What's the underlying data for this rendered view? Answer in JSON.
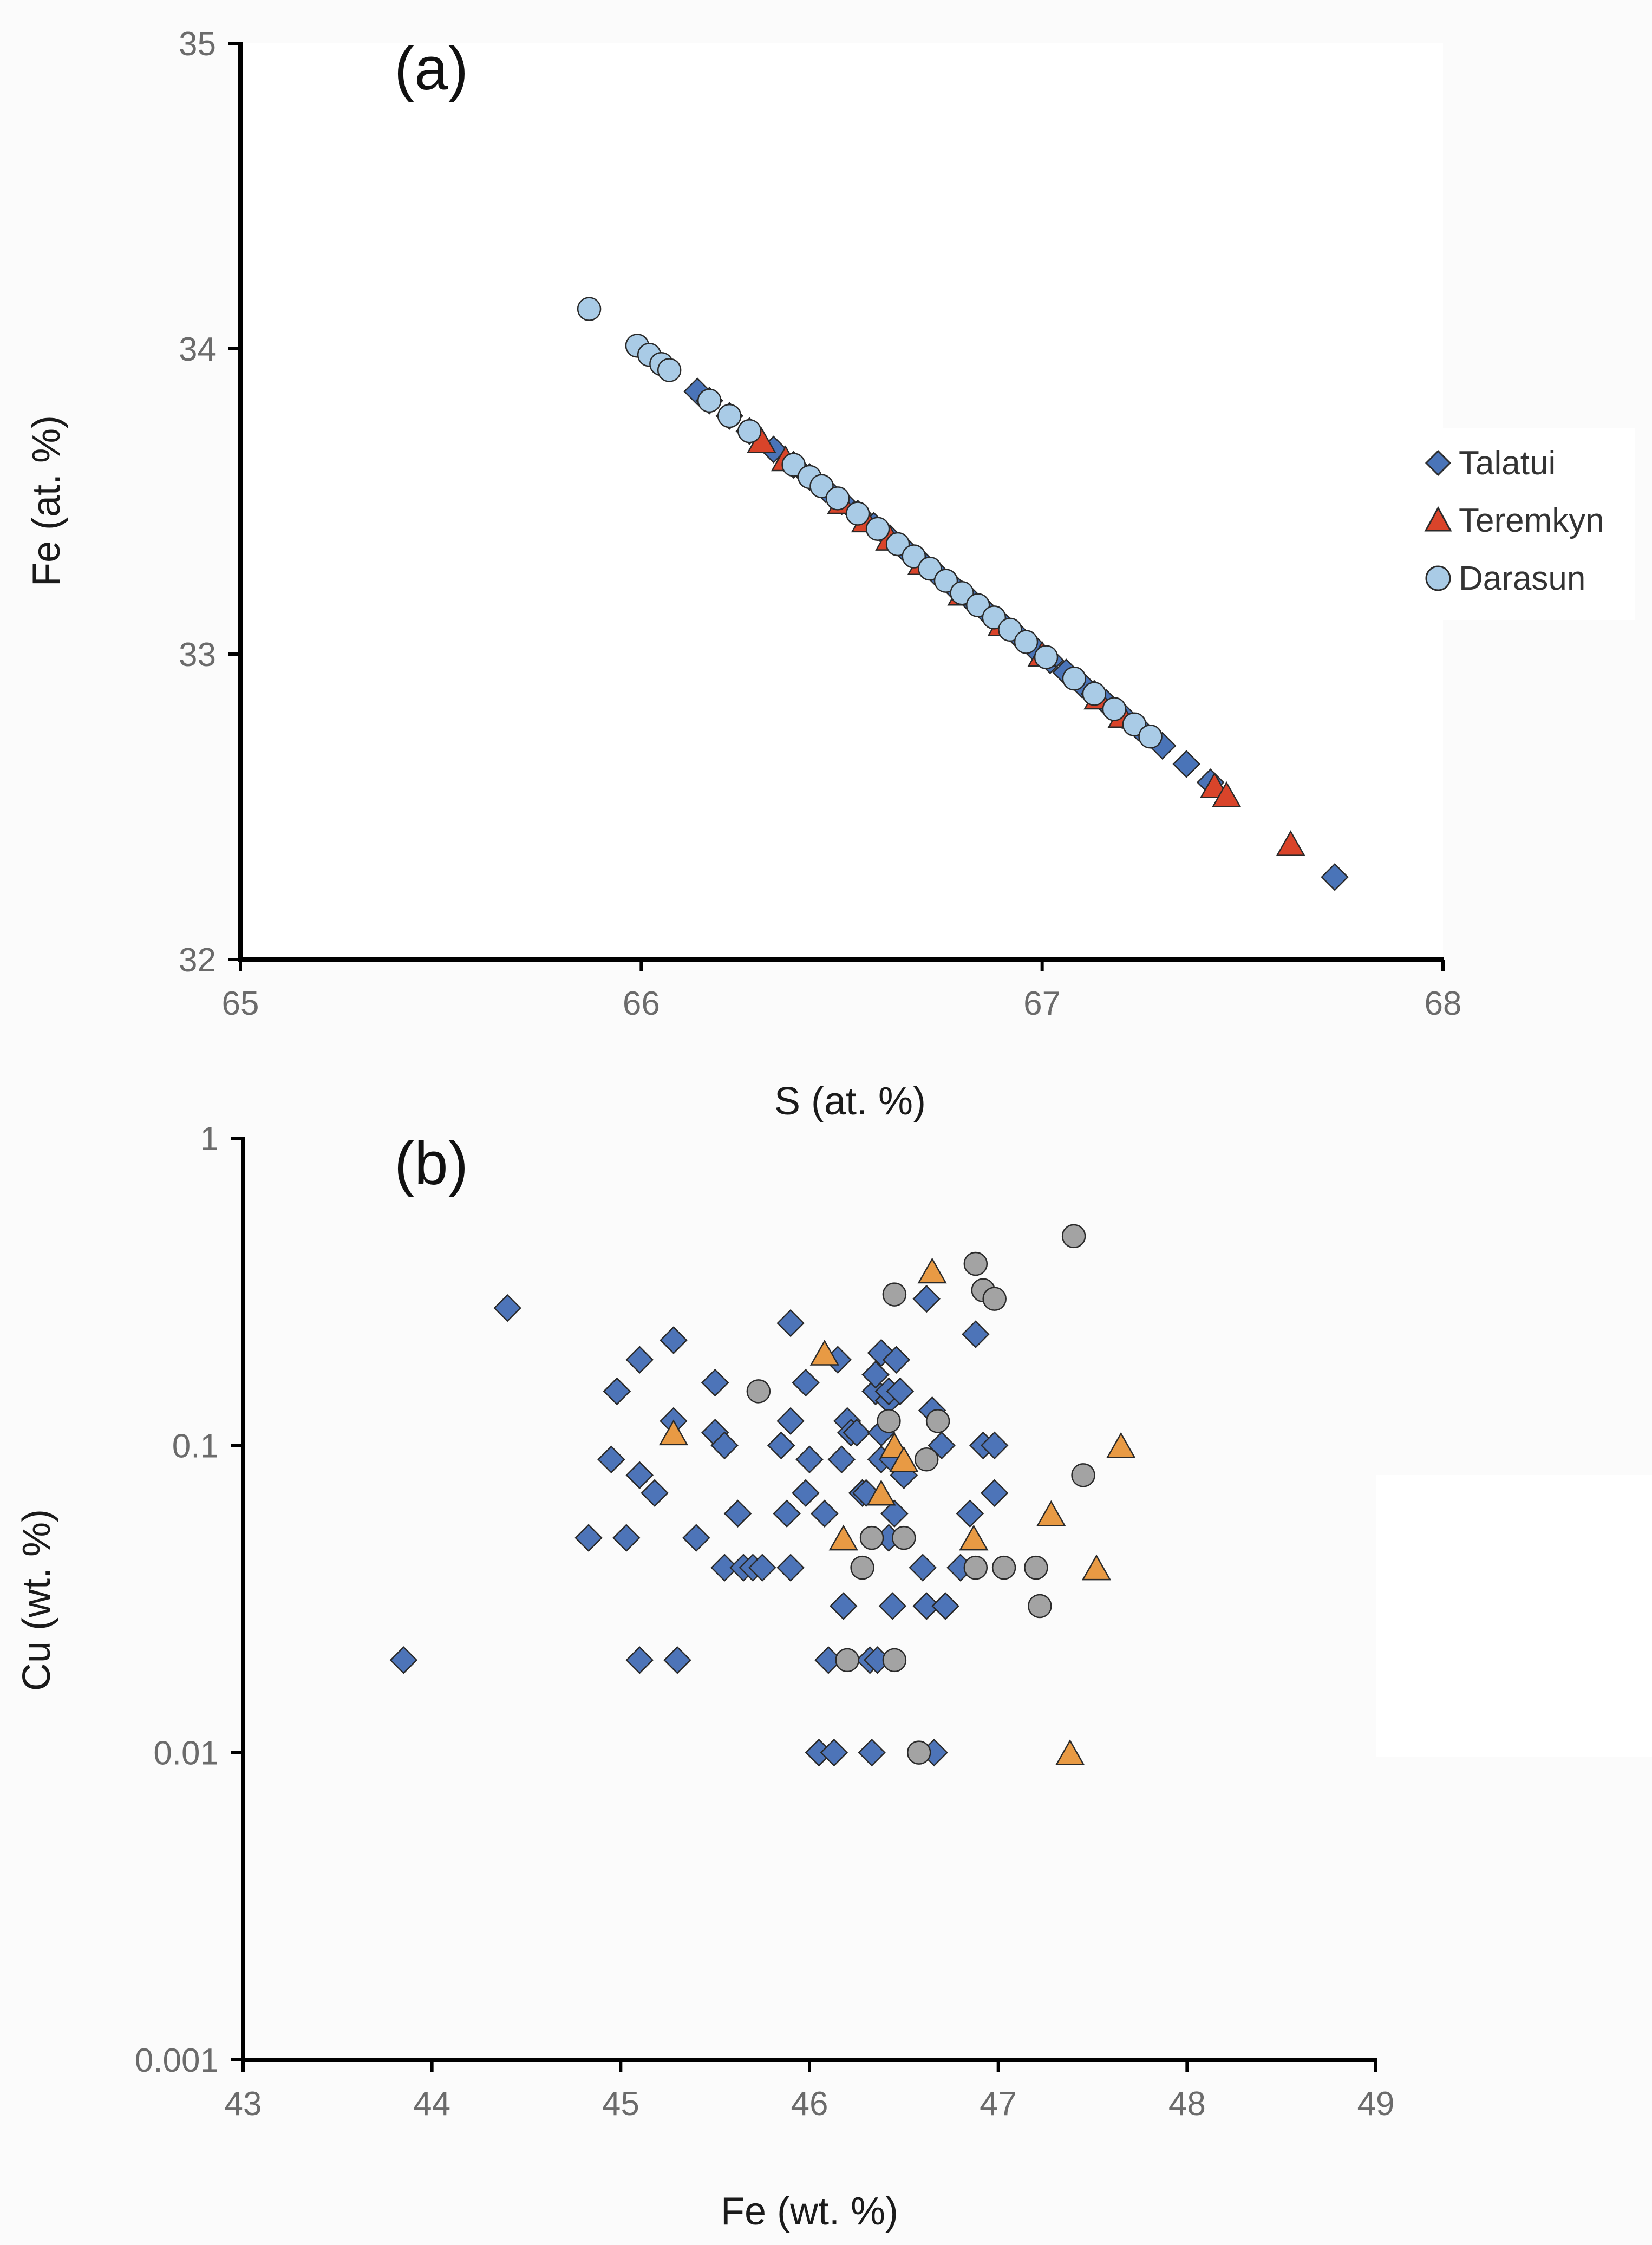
{
  "colors": {
    "talatui": "#4a74b8",
    "teremkyn": "#d9442a",
    "darasun": "#a9cbe6",
    "b_diamond": "#4d74b8",
    "b_triangle": "#e89a44",
    "b_circle": "#a3a3a3",
    "axis": "#000000",
    "marker_edge": "#2a2a2a"
  },
  "chart_data": [
    {
      "type": "scatter",
      "panel_label": "(a)",
      "xlabel": "S (at. %)",
      "ylabel": "Fe (at. %)",
      "xlim": [
        65,
        68
      ],
      "ylim": [
        32,
        35
      ],
      "xticks": [
        "65",
        "66",
        "67",
        "68"
      ],
      "yticks": [
        "32",
        "33",
        "34",
        "35"
      ],
      "grid": false,
      "legend": {
        "placement": "right",
        "entries": [
          "Talatui",
          "Teremkyn",
          "Darasun"
        ]
      },
      "series": [
        {
          "name": "Talatui",
          "marker": "diamond",
          "points": [
            [
              66.14,
              33.86
            ],
            [
              66.17,
              33.83
            ],
            [
              66.22,
              33.78
            ],
            [
              66.27,
              33.73
            ],
            [
              66.33,
              33.67
            ],
            [
              66.38,
              33.62
            ],
            [
              66.42,
              33.58
            ],
            [
              66.46,
              33.54
            ],
            [
              66.5,
              33.5
            ],
            [
              66.54,
              33.46
            ],
            [
              66.58,
              33.42
            ],
            [
              66.62,
              33.38
            ],
            [
              66.66,
              33.34
            ],
            [
              66.7,
              33.3
            ],
            [
              66.74,
              33.26
            ],
            [
              66.78,
              33.22
            ],
            [
              66.82,
              33.18
            ],
            [
              66.86,
              33.14
            ],
            [
              66.9,
              33.1
            ],
            [
              66.94,
              33.06
            ],
            [
              66.98,
              33.02
            ],
            [
              67.02,
              32.98
            ],
            [
              67.06,
              32.94
            ],
            [
              67.1,
              32.9
            ],
            [
              67.13,
              32.87
            ],
            [
              67.16,
              32.84
            ],
            [
              67.2,
              32.8
            ],
            [
              67.24,
              32.76
            ],
            [
              67.3,
              32.7
            ],
            [
              67.36,
              32.64
            ],
            [
              67.42,
              32.58
            ],
            [
              67.73,
              32.27
            ]
          ]
        },
        {
          "name": "Teremkyn",
          "marker": "triangle",
          "points": [
            [
              66.3,
              33.7
            ],
            [
              66.36,
              33.64
            ],
            [
              66.5,
              33.5
            ],
            [
              66.56,
              33.44
            ],
            [
              66.62,
              33.38
            ],
            [
              66.7,
              33.3
            ],
            [
              66.8,
              33.2
            ],
            [
              66.9,
              33.1
            ],
            [
              67.0,
              33.0
            ],
            [
              67.14,
              32.86
            ],
            [
              67.2,
              32.8
            ],
            [
              67.43,
              32.57
            ],
            [
              67.46,
              32.54
            ],
            [
              67.62,
              32.38
            ]
          ]
        },
        {
          "name": "Darasun",
          "marker": "circle",
          "points": [
            [
              65.87,
              34.13
            ],
            [
              65.99,
              34.01
            ],
            [
              66.02,
              33.98
            ],
            [
              66.05,
              33.95
            ],
            [
              66.07,
              33.93
            ],
            [
              66.17,
              33.83
            ],
            [
              66.22,
              33.78
            ],
            [
              66.27,
              33.73
            ],
            [
              66.38,
              33.62
            ],
            [
              66.42,
              33.58
            ],
            [
              66.45,
              33.55
            ],
            [
              66.49,
              33.51
            ],
            [
              66.54,
              33.46
            ],
            [
              66.59,
              33.41
            ],
            [
              66.64,
              33.36
            ],
            [
              66.68,
              33.32
            ],
            [
              66.72,
              33.28
            ],
            [
              66.76,
              33.24
            ],
            [
              66.8,
              33.2
            ],
            [
              66.84,
              33.16
            ],
            [
              66.88,
              33.12
            ],
            [
              66.92,
              33.08
            ],
            [
              66.96,
              33.04
            ],
            [
              67.01,
              32.99
            ],
            [
              67.08,
              32.92
            ],
            [
              67.13,
              32.87
            ],
            [
              67.18,
              32.82
            ],
            [
              67.23,
              32.77
            ],
            [
              67.27,
              32.73
            ]
          ]
        }
      ]
    },
    {
      "type": "scatter",
      "panel_label": "(b)",
      "xlabel": "Fe (wt. %)",
      "ylabel": "Cu (wt. %)",
      "xlim": [
        43,
        49
      ],
      "ylim": [
        0.001,
        1
      ],
      "yscale": "log",
      "xticks": [
        "43",
        "44",
        "45",
        "46",
        "47",
        "48",
        "49"
      ],
      "yticks": [
        "0.001",
        "0.01",
        "0.1",
        "1"
      ],
      "grid": false,
      "legend": null,
      "series": [
        {
          "marker": "diamond",
          "points": [
            [
              43.85,
              0.02
            ],
            [
              44.4,
              0.28
            ],
            [
              44.83,
              0.05
            ],
            [
              44.95,
              0.09
            ],
            [
              44.98,
              0.15
            ],
            [
              45.03,
              0.05
            ],
            [
              45.1,
              0.08
            ],
            [
              45.1,
              0.19
            ],
            [
              45.1,
              0.02
            ],
            [
              45.18,
              0.07
            ],
            [
              45.28,
              0.22
            ],
            [
              45.28,
              0.12
            ],
            [
              45.3,
              0.02
            ],
            [
              45.4,
              0.05
            ],
            [
              45.5,
              0.16
            ],
            [
              45.5,
              0.11
            ],
            [
              45.55,
              0.1
            ],
            [
              45.55,
              0.04
            ],
            [
              45.62,
              0.06
            ],
            [
              45.65,
              0.04
            ],
            [
              45.7,
              0.04
            ],
            [
              45.75,
              0.04
            ],
            [
              45.85,
              0.1
            ],
            [
              45.88,
              0.06
            ],
            [
              45.9,
              0.25
            ],
            [
              45.9,
              0.12
            ],
            [
              45.9,
              0.04
            ],
            [
              45.98,
              0.16
            ],
            [
              45.98,
              0.07
            ],
            [
              46.0,
              0.09
            ],
            [
              46.05,
              0.01
            ],
            [
              46.08,
              0.06
            ],
            [
              46.1,
              0.02
            ],
            [
              46.13,
              0.01
            ],
            [
              46.15,
              0.19
            ],
            [
              46.17,
              0.09
            ],
            [
              46.18,
              0.03
            ],
            [
              46.2,
              0.12
            ],
            [
              46.22,
              0.11
            ],
            [
              46.25,
              0.11
            ],
            [
              46.28,
              0.07
            ],
            [
              46.3,
              0.07
            ],
            [
              46.32,
              0.02
            ],
            [
              46.33,
              0.01
            ],
            [
              46.35,
              0.15
            ],
            [
              46.35,
              0.17
            ],
            [
              46.36,
              0.02
            ],
            [
              46.38,
              0.2
            ],
            [
              46.38,
              0.11
            ],
            [
              46.38,
              0.09
            ],
            [
              46.42,
              0.14
            ],
            [
              46.42,
              0.15
            ],
            [
              46.42,
              0.05
            ],
            [
              46.44,
              0.09
            ],
            [
              46.44,
              0.03
            ],
            [
              46.45,
              0.06
            ],
            [
              46.46,
              0.19
            ],
            [
              46.48,
              0.15
            ],
            [
              46.5,
              0.08
            ],
            [
              46.6,
              0.04
            ],
            [
              46.62,
              0.3
            ],
            [
              46.62,
              0.03
            ],
            [
              46.65,
              0.13
            ],
            [
              46.66,
              0.01
            ],
            [
              46.7,
              0.1
            ],
            [
              46.72,
              0.03
            ],
            [
              46.8,
              0.04
            ],
            [
              46.85,
              0.06
            ],
            [
              46.88,
              0.23
            ],
            [
              46.92,
              0.1
            ],
            [
              46.98,
              0.1
            ],
            [
              46.98,
              0.07
            ]
          ]
        },
        {
          "marker": "triangle",
          "points": [
            [
              45.28,
              0.11
            ],
            [
              46.08,
              0.2
            ],
            [
              46.18,
              0.05
            ],
            [
              46.38,
              0.07
            ],
            [
              46.45,
              0.1
            ],
            [
              46.5,
              0.09
            ],
            [
              46.65,
              0.37
            ],
            [
              46.87,
              0.05
            ],
            [
              47.28,
              0.06
            ],
            [
              47.38,
              0.01
            ],
            [
              47.52,
              0.04
            ],
            [
              47.65,
              0.1
            ]
          ]
        },
        {
          "marker": "circle",
          "points": [
            [
              45.73,
              0.15
            ],
            [
              46.2,
              0.02
            ],
            [
              46.28,
              0.04
            ],
            [
              46.33,
              0.05
            ],
            [
              46.42,
              0.12
            ],
            [
              46.45,
              0.31
            ],
            [
              46.45,
              0.02
            ],
            [
              46.5,
              0.05
            ],
            [
              46.58,
              0.01
            ],
            [
              46.62,
              0.09
            ],
            [
              46.68,
              0.12
            ],
            [
              46.88,
              0.39
            ],
            [
              46.88,
              0.04
            ],
            [
              46.92,
              0.32
            ],
            [
              46.98,
              0.3
            ],
            [
              47.03,
              0.04
            ],
            [
              47.2,
              0.04
            ],
            [
              47.22,
              0.03
            ],
            [
              47.4,
              0.48
            ],
            [
              47.45,
              0.08
            ]
          ]
        }
      ]
    }
  ]
}
